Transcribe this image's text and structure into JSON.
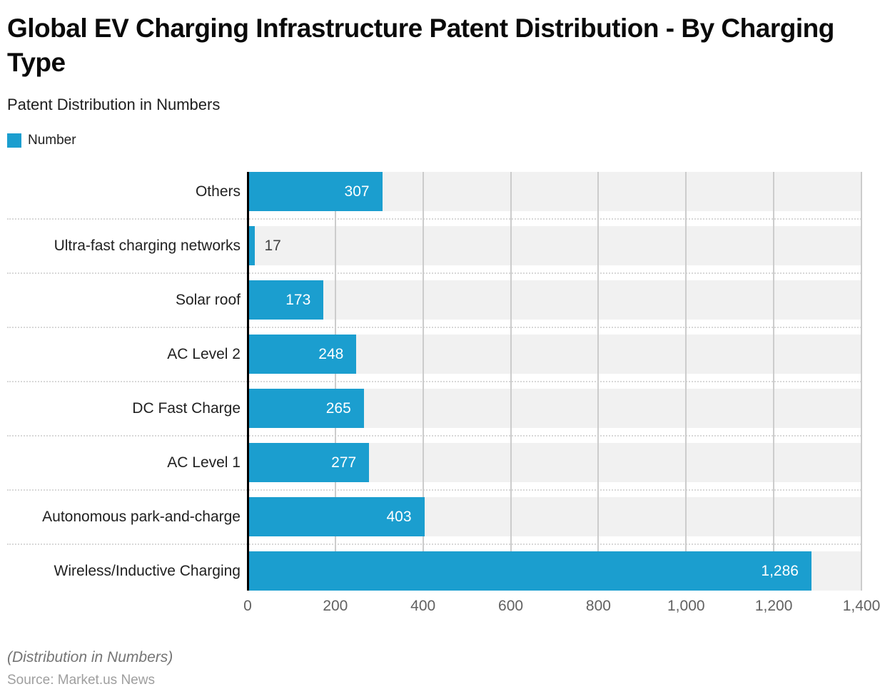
{
  "header": {
    "title": "Global EV Charging Infrastructure Patent Distribution - By Charging Type",
    "subtitle": "Patent Distribution in Numbers"
  },
  "legend": {
    "label": "Number",
    "swatch_color": "#1B9ECF"
  },
  "chart_data": {
    "type": "bar",
    "orientation": "horizontal",
    "title": "Global EV Charging Infrastructure Patent Distribution - By Charging Type",
    "subtitle": "Patent Distribution in Numbers",
    "series_name": "Number",
    "categories": [
      "Others",
      "Ultra-fast charging networks",
      "Solar roof",
      "AC Level 2",
      "DC Fast Charge",
      "AC Level 1",
      "Autonomous park-and-charge",
      "Wireless/Inductive Charging"
    ],
    "values": [
      307,
      17,
      173,
      248,
      265,
      277,
      403,
      1286
    ],
    "value_labels": [
      "307",
      "17",
      "173",
      "248",
      "265",
      "277",
      "403",
      "1,286"
    ],
    "xlim": [
      0,
      1400
    ],
    "xticks": [
      0,
      200,
      400,
      600,
      800,
      1000,
      1200,
      1400
    ],
    "xtick_labels": [
      "0",
      "200",
      "400",
      "600",
      "800",
      "1,000",
      "1,200",
      "1,400"
    ],
    "grid": true,
    "legend_position": "top-left",
    "bar_color": "#1B9ECF",
    "track_color": "#f1f1f1",
    "gridline_color": "#cccccc",
    "value_label_inside_color": "#ffffff",
    "value_label_outside_color": "#424242"
  },
  "footer": {
    "note": "(Distribution in Numbers)",
    "source": "Source: Market.us News"
  }
}
